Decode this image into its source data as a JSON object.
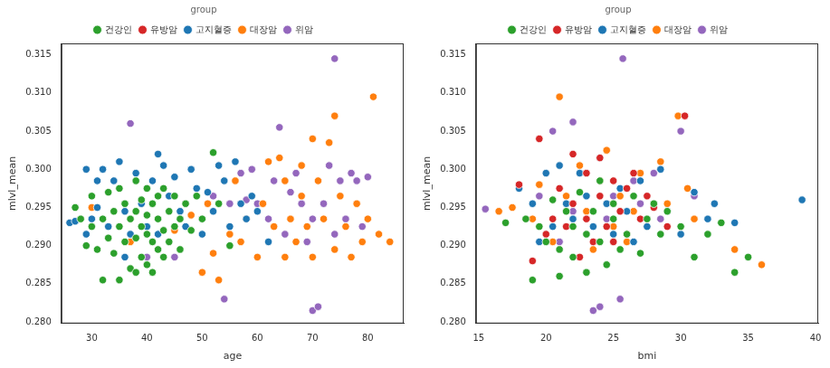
{
  "chart_data": [
    {
      "type": "scatter",
      "x_label": "age",
      "y_label": "mlvl_mean",
      "legend": "top",
      "legend_title": "group",
      "grid": false,
      "xlim": [
        24.5,
        86.5
      ],
      "xticks": [
        30,
        40,
        50,
        60,
        70,
        80
      ],
      "ylim": [
        0.2798,
        0.3165
      ],
      "yticks": [
        {
          "value": 0.28,
          "label": "0.280"
        },
        0.285,
        {
          "value": 0.29,
          "label": "0.290"
        },
        0.295,
        {
          "value": 0.3,
          "label": "0.300"
        },
        0.305,
        {
          "value": 0.31,
          "label": "0.310"
        },
        0.315
      ],
      "series": [
        {
          "name": "건강인",
          "color": "#2ca02c",
          "x": [
            27,
            28,
            29,
            30,
            30,
            31,
            32,
            32,
            33,
            33,
            34,
            34,
            35,
            35,
            35,
            36,
            36,
            37,
            37,
            38,
            38,
            38,
            38,
            39,
            39,
            39,
            40,
            40,
            40,
            40,
            41,
            41,
            41,
            42,
            42,
            42,
            43,
            43,
            43,
            44,
            44,
            45,
            45,
            46,
            46,
            47,
            48,
            49,
            50,
            52,
            53,
            55
          ],
          "values": [
            0.295,
            0.2935,
            0.29,
            0.2965,
            0.2925,
            0.2895,
            0.2855,
            0.2935,
            0.297,
            0.291,
            0.2945,
            0.289,
            0.2975,
            0.2925,
            0.2855,
            0.2955,
            0.2905,
            0.2935,
            0.287,
            0.2985,
            0.2945,
            0.291,
            0.2865,
            0.296,
            0.2925,
            0.2885,
            0.2975,
            0.294,
            0.2915,
            0.2875,
            0.2955,
            0.2905,
            0.2865,
            0.2965,
            0.2935,
            0.2895,
            0.2975,
            0.292,
            0.2885,
            0.2945,
            0.2905,
            0.2965,
            0.2925,
            0.2935,
            0.2895,
            0.2955,
            0.292,
            0.2965,
            0.2935,
            0.3022,
            0.2955,
            0.29
          ]
        },
        {
          "name": "유방암",
          "color": "#d62728",
          "x": [],
          "values": []
        },
        {
          "name": "고지혈증",
          "color": "#1f77b4",
          "x": [
            26,
            27,
            29,
            29,
            30,
            31,
            31,
            32,
            33,
            34,
            35,
            36,
            36,
            37,
            38,
            39,
            40,
            41,
            42,
            42,
            43,
            44,
            45,
            46,
            47,
            48,
            49,
            50,
            51,
            52,
            53,
            54,
            55,
            56,
            57,
            58,
            59,
            60,
            62
          ],
          "values": [
            0.293,
            0.2932,
            0.3,
            0.2915,
            0.2935,
            0.2985,
            0.295,
            0.3,
            0.2925,
            0.2985,
            0.301,
            0.2945,
            0.2885,
            0.2915,
            0.2995,
            0.2955,
            0.2925,
            0.2985,
            0.302,
            0.2915,
            0.3005,
            0.2965,
            0.299,
            0.2945,
            0.2925,
            0.3,
            0.2975,
            0.2915,
            0.297,
            0.2945,
            0.3005,
            0.2985,
            0.2925,
            0.301,
            0.2955,
            0.2935,
            0.2965,
            0.2945,
            0.2905
          ]
        },
        {
          "name": "대장암",
          "color": "#ff7f0e",
          "x": [
            30,
            37,
            45,
            48,
            50,
            51,
            52,
            53,
            55,
            56,
            57,
            58,
            60,
            61,
            62,
            63,
            64,
            65,
            65,
            66,
            67,
            68,
            68,
            69,
            70,
            70,
            71,
            72,
            73,
            74,
            74,
            75,
            76,
            77,
            78,
            79,
            80,
            81,
            82,
            84
          ],
          "values": [
            0.295,
            0.2905,
            0.292,
            0.294,
            0.2865,
            0.2955,
            0.289,
            0.2855,
            0.2915,
            0.2985,
            0.2905,
            0.2935,
            0.2885,
            0.2955,
            0.301,
            0.2925,
            0.3015,
            0.2885,
            0.2985,
            0.2935,
            0.2905,
            0.2965,
            0.3005,
            0.2925,
            0.2885,
            0.304,
            0.2985,
            0.2935,
            0.3035,
            0.307,
            0.2895,
            0.2965,
            0.2925,
            0.2885,
            0.2955,
            0.2905,
            0.2935,
            0.3095,
            0.2915,
            0.2905
          ]
        },
        {
          "name": "위암",
          "color": "#9467bd",
          "x": [
            37,
            40,
            45,
            50,
            52,
            54,
            55,
            57,
            58,
            59,
            60,
            62,
            63,
            64,
            65,
            66,
            67,
            68,
            69,
            70,
            70,
            71,
            72,
            73,
            74,
            74,
            75,
            76,
            77,
            78,
            79,
            80
          ],
          "values": [
            0.306,
            0.2885,
            0.2885,
            0.2935,
            0.2965,
            0.283,
            0.2955,
            0.2995,
            0.296,
            0.3,
            0.2955,
            0.2935,
            0.2985,
            0.3055,
            0.2915,
            0.297,
            0.2995,
            0.2955,
            0.2905,
            0.2815,
            0.2935,
            0.282,
            0.2955,
            0.3005,
            0.3145,
            0.2915,
            0.2985,
            0.2935,
            0.2995,
            0.2985,
            0.2925,
            0.299
          ]
        }
      ]
    },
    {
      "type": "scatter",
      "x_label": "bmi",
      "y_label": "mlvl_mean",
      "legend": "top",
      "legend_title": "group",
      "grid": false,
      "xlim": [
        14.8,
        40.2
      ],
      "xticks": [
        15,
        20,
        25,
        30,
        35,
        40
      ],
      "ylim": [
        0.2798,
        0.3165
      ],
      "yticks": [
        {
          "value": 0.28,
          "label": "0.280"
        },
        0.285,
        {
          "value": 0.29,
          "label": "0.290"
        },
        0.295,
        {
          "value": 0.3,
          "label": "0.300"
        },
        0.305,
        {
          "value": 0.31,
          "label": "0.310"
        },
        0.315
      ],
      "series": [
        {
          "name": "건강인",
          "color": "#2ca02c",
          "x": [
            17,
            18.5,
            19,
            19.5,
            20,
            20.5,
            21,
            21,
            21.5,
            22,
            22,
            22.5,
            23,
            23,
            23.5,
            24,
            24,
            24.5,
            25,
            25,
            25.5,
            26,
            26.5,
            27,
            27.5,
            28,
            28.5,
            29,
            30,
            31,
            32,
            33,
            34,
            35
          ],
          "values": [
            0.293,
            0.2935,
            0.2855,
            0.2925,
            0.2905,
            0.296,
            0.2895,
            0.286,
            0.2945,
            0.2925,
            0.2885,
            0.297,
            0.2915,
            0.2865,
            0.2945,
            0.2905,
            0.2985,
            0.2875,
            0.2935,
            0.2955,
            0.2895,
            0.2915,
            0.2965,
            0.289,
            0.2935,
            0.2955,
            0.2915,
            0.2945,
            0.2925,
            0.2885,
            0.2915,
            0.293,
            0.2865,
            0.2885
          ]
        },
        {
          "name": "유방암",
          "color": "#d62728",
          "x": [
            18,
            19,
            19.5,
            20,
            20.5,
            21,
            21.5,
            22,
            22,
            22.5,
            23,
            23,
            23.5,
            24,
            24,
            24.5,
            25,
            25,
            25.5,
            26,
            26,
            26.5,
            27,
            27.5,
            28,
            29,
            30.3
          ],
          "values": [
            0.298,
            0.288,
            0.304,
            0.2915,
            0.2935,
            0.2975,
            0.2925,
            0.302,
            0.2955,
            0.2885,
            0.2995,
            0.2935,
            0.2905,
            0.2965,
            0.3015,
            0.2925,
            0.2985,
            0.2905,
            0.2945,
            0.2975,
            0.2915,
            0.2995,
            0.2935,
            0.2965,
            0.295,
            0.2925,
            0.307
          ]
        },
        {
          "name": "고지혈증",
          "color": "#1f77b4",
          "x": [
            18,
            19,
            19.5,
            20,
            20.5,
            21,
            21.5,
            22,
            22.5,
            23,
            23.5,
            24,
            24.5,
            25,
            25.5,
            26,
            26.5,
            27,
            27.5,
            28,
            28.5,
            29,
            30,
            31,
            32,
            32.5,
            34,
            39
          ],
          "values": [
            0.2975,
            0.2955,
            0.2905,
            0.2995,
            0.2925,
            0.3005,
            0.2955,
            0.2935,
            0.2995,
            0.2965,
            0.2925,
            0.3015,
            0.2955,
            0.2915,
            0.2975,
            0.2945,
            0.2905,
            0.2985,
            0.2925,
            0.2955,
            0.3,
            0.2945,
            0.2915,
            0.297,
            0.2935,
            0.2955,
            0.293,
            0.296
          ]
        },
        {
          "name": "대장암",
          "color": "#ff7f0e",
          "x": [
            16.5,
            17.5,
            19,
            19.5,
            20.5,
            21,
            21.5,
            22,
            22.5,
            23,
            23.5,
            24,
            24.5,
            25,
            25.5,
            26,
            26.5,
            27,
            27.5,
            28.5,
            29,
            29.8,
            30.5,
            31,
            34,
            36
          ],
          "values": [
            0.2945,
            0.295,
            0.2935,
            0.298,
            0.2905,
            0.3095,
            0.2965,
            0.2925,
            0.3005,
            0.2945,
            0.2895,
            0.2985,
            0.3025,
            0.2925,
            0.2965,
            0.2905,
            0.2945,
            0.2995,
            0.2925,
            0.301,
            0.2955,
            0.307,
            0.2975,
            0.2935,
            0.2895,
            0.2875
          ]
        },
        {
          "name": "위암",
          "color": "#9467bd",
          "x": [
            15.5,
            19.5,
            20.5,
            21,
            22,
            22,
            23,
            23.5,
            24,
            24.5,
            25,
            25.5,
            25.7,
            26.5,
            27,
            28,
            28.5,
            30,
            31
          ],
          "values": [
            0.2948,
            0.2965,
            0.305,
            0.2905,
            0.2945,
            0.3062,
            0.2995,
            0.2815,
            0.282,
            0.2935,
            0.2965,
            0.283,
            0.3145,
            0.2985,
            0.2955,
            0.2995,
            0.2935,
            0.305,
            0.2965
          ]
        }
      ]
    }
  ]
}
